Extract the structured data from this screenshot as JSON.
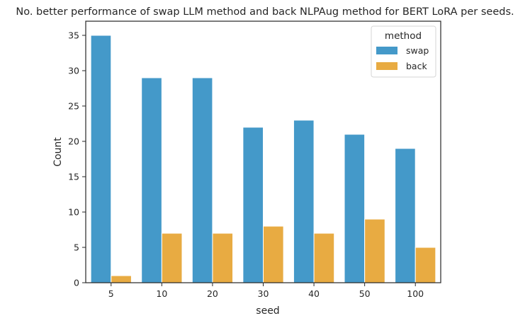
{
  "chart_data": {
    "type": "bar",
    "title": "No. better performance of swap LLM method and back NLPAug method for BERT LoRA per seeds.",
    "xlabel": "seed",
    "ylabel": "Count",
    "categories": [
      "5",
      "10",
      "20",
      "30",
      "40",
      "50",
      "100"
    ],
    "series": [
      {
        "name": "swap",
        "color": "#4499c9",
        "values": [
          35,
          29,
          29,
          22,
          23,
          21,
          19
        ]
      },
      {
        "name": "back",
        "color": "#e8ab42",
        "values": [
          1,
          7,
          7,
          8,
          7,
          9,
          5
        ]
      }
    ],
    "ylim": [
      0,
      37
    ],
    "yticks": [
      0,
      5,
      10,
      15,
      20,
      25,
      30,
      35
    ],
    "grid": false,
    "legend": {
      "title": "method",
      "position": "top-right"
    }
  }
}
